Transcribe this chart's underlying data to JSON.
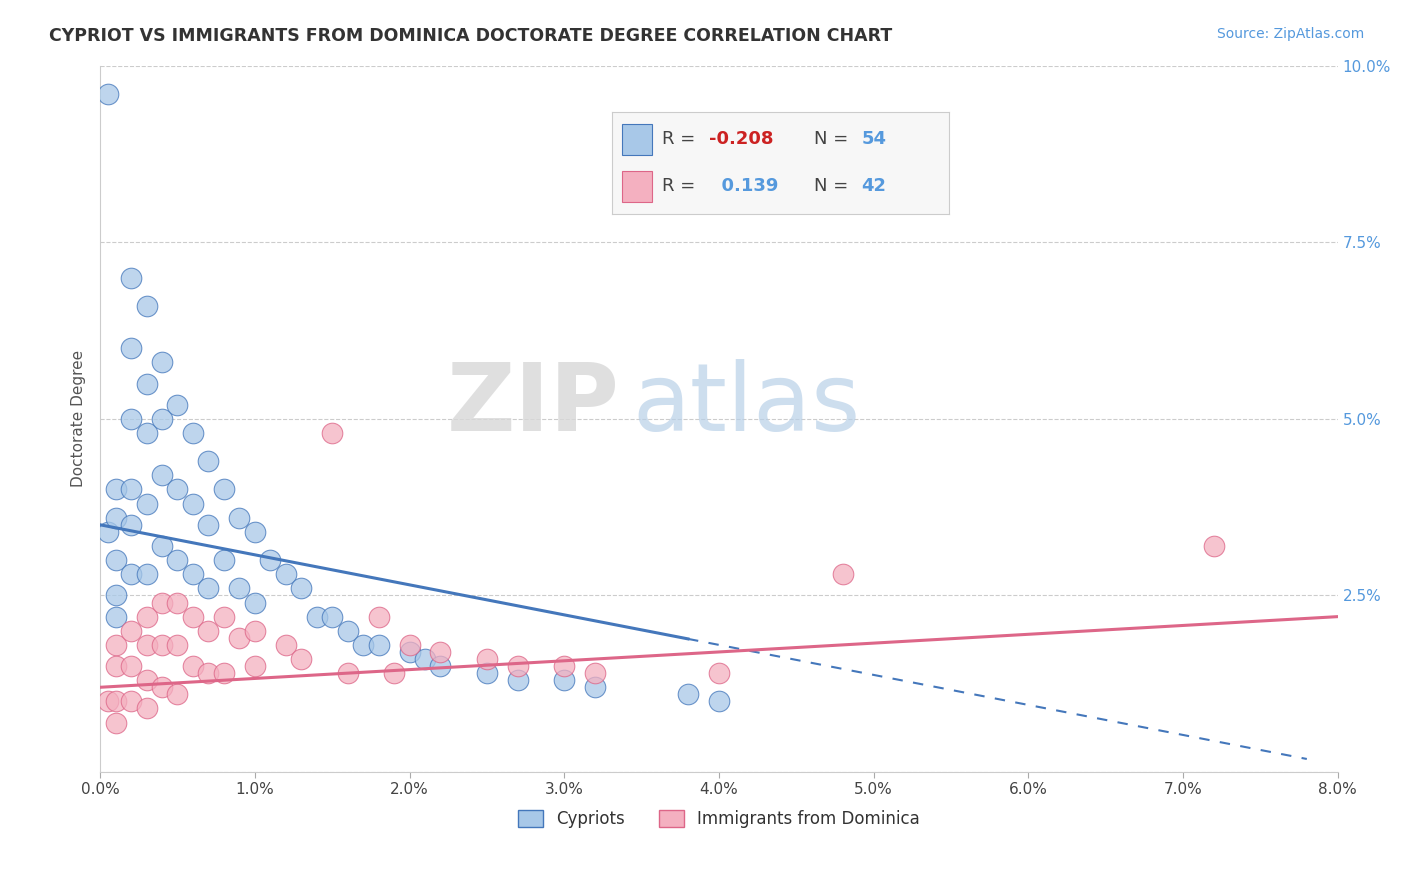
{
  "title": "CYPRIOT VS IMMIGRANTS FROM DOMINICA DOCTORATE DEGREE CORRELATION CHART",
  "source_text": "Source: ZipAtlas.com",
  "ylabel": "Doctorate Degree",
  "xlim": [
    0.0,
    0.08
  ],
  "ylim": [
    0.0,
    0.1
  ],
  "xticks": [
    0.0,
    0.01,
    0.02,
    0.03,
    0.04,
    0.05,
    0.06,
    0.07,
    0.08
  ],
  "yticks": [
    0.0,
    0.025,
    0.05,
    0.075,
    0.1
  ],
  "xticklabels": [
    "0.0%",
    "1.0%",
    "2.0%",
    "3.0%",
    "4.0%",
    "5.0%",
    "6.0%",
    "7.0%",
    "8.0%"
  ],
  "yticklabels": [
    "",
    "2.5%",
    "5.0%",
    "7.5%",
    "10.0%"
  ],
  "legend_R1": "-0.208",
  "legend_N1": "54",
  "legend_R2": "0.139",
  "legend_N2": "42",
  "color_cypriot": "#a8c8e8",
  "color_dominica": "#f4b0c0",
  "color_line_cypriot": "#4477bb",
  "color_line_dominica": "#dd6688",
  "color_title": "#333333",
  "color_axis_labels": "#5599dd",
  "background_color": "#ffffff",
  "watermark_ZIP": "ZIP",
  "watermark_atlas": "atlas",
  "cypriot_x": [
    0.0005,
    0.0005,
    0.001,
    0.001,
    0.001,
    0.001,
    0.001,
    0.002,
    0.002,
    0.002,
    0.002,
    0.002,
    0.002,
    0.003,
    0.003,
    0.003,
    0.003,
    0.003,
    0.004,
    0.004,
    0.004,
    0.004,
    0.005,
    0.005,
    0.005,
    0.006,
    0.006,
    0.006,
    0.007,
    0.007,
    0.007,
    0.008,
    0.008,
    0.009,
    0.009,
    0.01,
    0.01,
    0.011,
    0.012,
    0.013,
    0.014,
    0.015,
    0.016,
    0.017,
    0.018,
    0.02,
    0.021,
    0.022,
    0.025,
    0.027,
    0.03,
    0.032,
    0.038,
    0.04
  ],
  "cypriot_y": [
    0.096,
    0.034,
    0.04,
    0.036,
    0.03,
    0.025,
    0.022,
    0.07,
    0.06,
    0.05,
    0.04,
    0.035,
    0.028,
    0.066,
    0.055,
    0.048,
    0.038,
    0.028,
    0.058,
    0.05,
    0.042,
    0.032,
    0.052,
    0.04,
    0.03,
    0.048,
    0.038,
    0.028,
    0.044,
    0.035,
    0.026,
    0.04,
    0.03,
    0.036,
    0.026,
    0.034,
    0.024,
    0.03,
    0.028,
    0.026,
    0.022,
    0.022,
    0.02,
    0.018,
    0.018,
    0.017,
    0.016,
    0.015,
    0.014,
    0.013,
    0.013,
    0.012,
    0.011,
    0.01
  ],
  "dominica_x": [
    0.0005,
    0.001,
    0.001,
    0.001,
    0.001,
    0.002,
    0.002,
    0.002,
    0.003,
    0.003,
    0.003,
    0.003,
    0.004,
    0.004,
    0.004,
    0.005,
    0.005,
    0.005,
    0.006,
    0.006,
    0.007,
    0.007,
    0.008,
    0.008,
    0.009,
    0.01,
    0.01,
    0.012,
    0.013,
    0.015,
    0.016,
    0.018,
    0.019,
    0.02,
    0.022,
    0.025,
    0.027,
    0.03,
    0.032,
    0.04,
    0.048,
    0.072
  ],
  "dominica_y": [
    0.01,
    0.018,
    0.015,
    0.01,
    0.007,
    0.02,
    0.015,
    0.01,
    0.022,
    0.018,
    0.013,
    0.009,
    0.024,
    0.018,
    0.012,
    0.024,
    0.018,
    0.011,
    0.022,
    0.015,
    0.02,
    0.014,
    0.022,
    0.014,
    0.019,
    0.02,
    0.015,
    0.018,
    0.016,
    0.048,
    0.014,
    0.022,
    0.014,
    0.018,
    0.017,
    0.016,
    0.015,
    0.015,
    0.014,
    0.014,
    0.028,
    0.032
  ],
  "trend_cypriot_x0": 0.0,
  "trend_cypriot_y0": 0.035,
  "trend_cypriot_x1": 0.04,
  "trend_cypriot_y1": 0.018,
  "trend_cypriot_solid_end": 0.038,
  "trend_cypriot_dashed_end": 0.078,
  "trend_dominica_x0": 0.0,
  "trend_dominica_y0": 0.012,
  "trend_dominica_x1": 0.08,
  "trend_dominica_y1": 0.022
}
